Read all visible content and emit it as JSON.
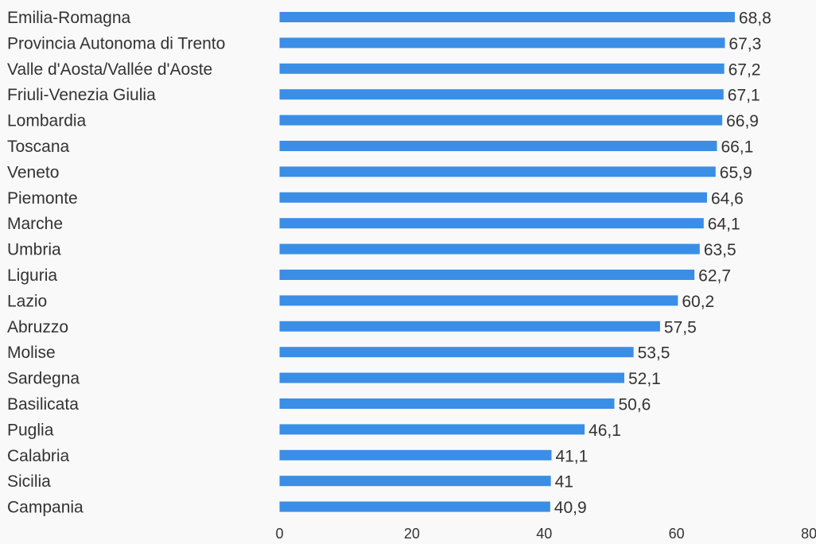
{
  "chart_data": {
    "type": "bar",
    "orientation": "horizontal",
    "categories": [
      "Emilia-Romagna",
      "Provincia Autonoma di Trento",
      "Valle d'Aosta/Vallée d'Aoste",
      "Friuli-Venezia Giulia",
      "Lombardia",
      "Toscana",
      "Veneto",
      "Piemonte",
      "Marche",
      "Umbria",
      "Liguria",
      "Lazio",
      "Abruzzo",
      "Molise",
      "Sardegna",
      "Basilicata",
      "Puglia",
      "Calabria",
      "Sicilia",
      "Campania"
    ],
    "values": [
      68.8,
      67.3,
      67.2,
      67.1,
      66.9,
      66.1,
      65.9,
      64.6,
      64.1,
      63.5,
      62.7,
      60.2,
      57.5,
      53.5,
      52.1,
      50.6,
      46.1,
      41.1,
      41,
      40.9
    ],
    "value_labels": [
      "68,8",
      "67,3",
      "67,2",
      "67,1",
      "66,9",
      "66,1",
      "65,9",
      "64,6",
      "64,1",
      "63,5",
      "62,7",
      "60,2",
      "57,5",
      "53,5",
      "52,1",
      "50,6",
      "46,1",
      "41,1",
      "41",
      "40,9"
    ],
    "xlim": [
      0,
      80
    ],
    "xticks": [
      0,
      20,
      40,
      60,
      80
    ],
    "xtick_labels": [
      "0",
      "20",
      "40",
      "60",
      "80"
    ],
    "title": "",
    "xlabel": "",
    "ylabel": "",
    "grid": false,
    "legend": "none",
    "bar_color": "#3a8ee6",
    "text_color": "#333333",
    "background_color": "#f9f9f9"
  }
}
